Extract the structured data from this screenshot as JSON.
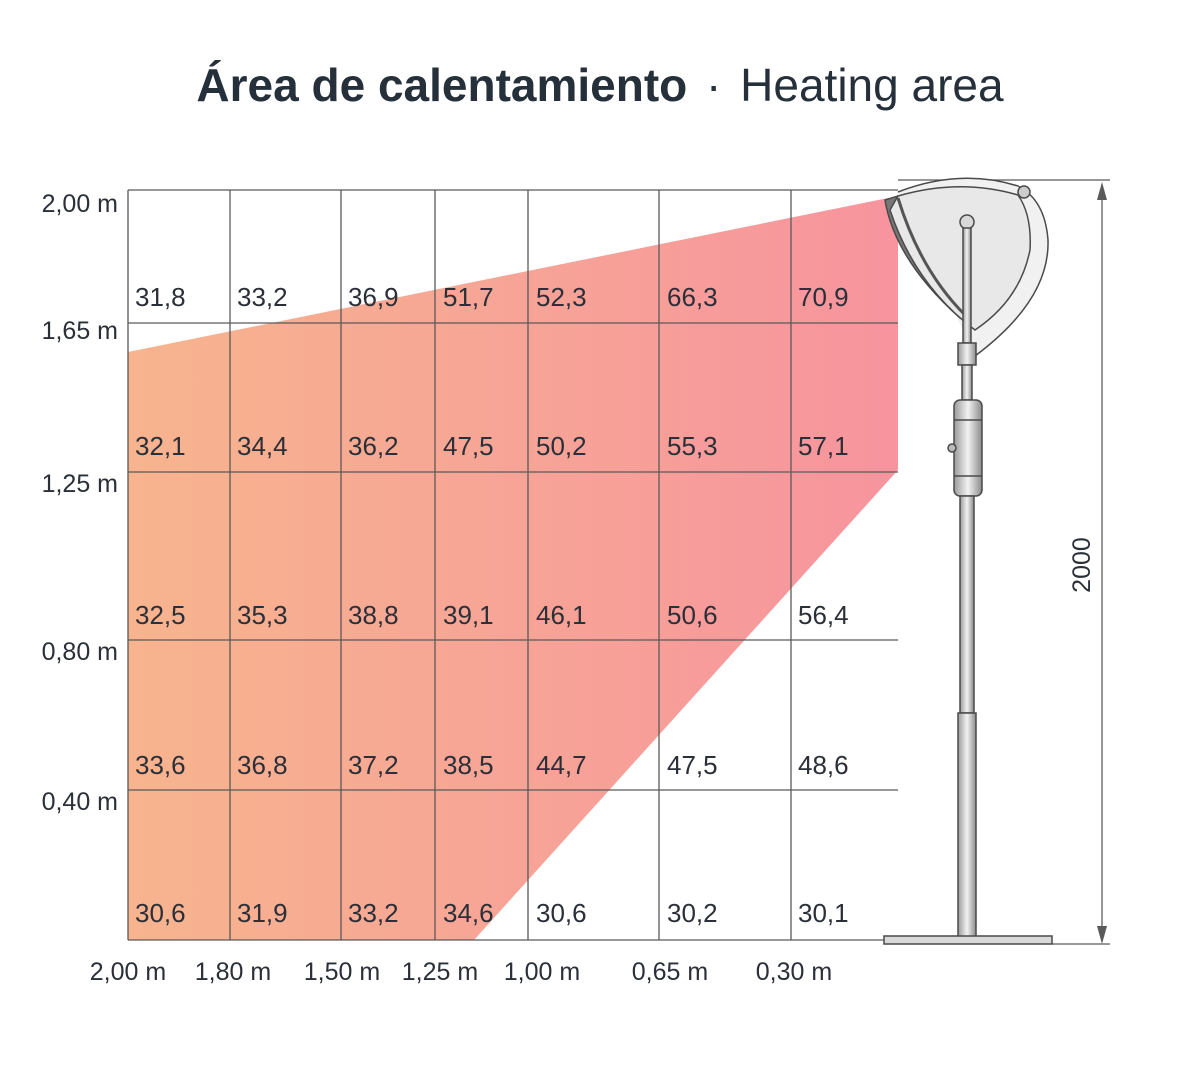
{
  "title": {
    "spanish": "Área de calentamiento",
    "separator": "·",
    "english": "Heating area"
  },
  "colors": {
    "warm_start": "#f7b48e",
    "warm_end": "#f7949e",
    "grid": "#5a5a5a",
    "text": "#2b2f38"
  },
  "heights": [
    "2,00 m",
    "1,65 m",
    "1,25 m",
    "0,80 m",
    "0,40 m"
  ],
  "distances": [
    "2,00 m",
    "1,80 m",
    "1,50 m",
    "1,25 m",
    "1,00 m",
    "0,65 m",
    "0,30 m"
  ],
  "grid_values": [
    [
      "31,8",
      "33,2",
      "36,9",
      "51,7",
      "52,3",
      "66,3",
      "70,9"
    ],
    [
      "32,1",
      "34,4",
      "36,2",
      "47,5",
      "50,2",
      "55,3",
      "57,1"
    ],
    [
      "32,5",
      "35,3",
      "38,8",
      "39,1",
      "46,1",
      "50,6",
      "56,4"
    ],
    [
      "33,6",
      "36,8",
      "37,2",
      "38,5",
      "44,7",
      "47,5",
      "48,6"
    ],
    [
      "30,6",
      "31,9",
      "33,2",
      "34,6",
      "30,6",
      "30,2",
      "30,1"
    ]
  ],
  "dimension": "2000",
  "icons": {
    "heater": "patio-heater-icon"
  }
}
